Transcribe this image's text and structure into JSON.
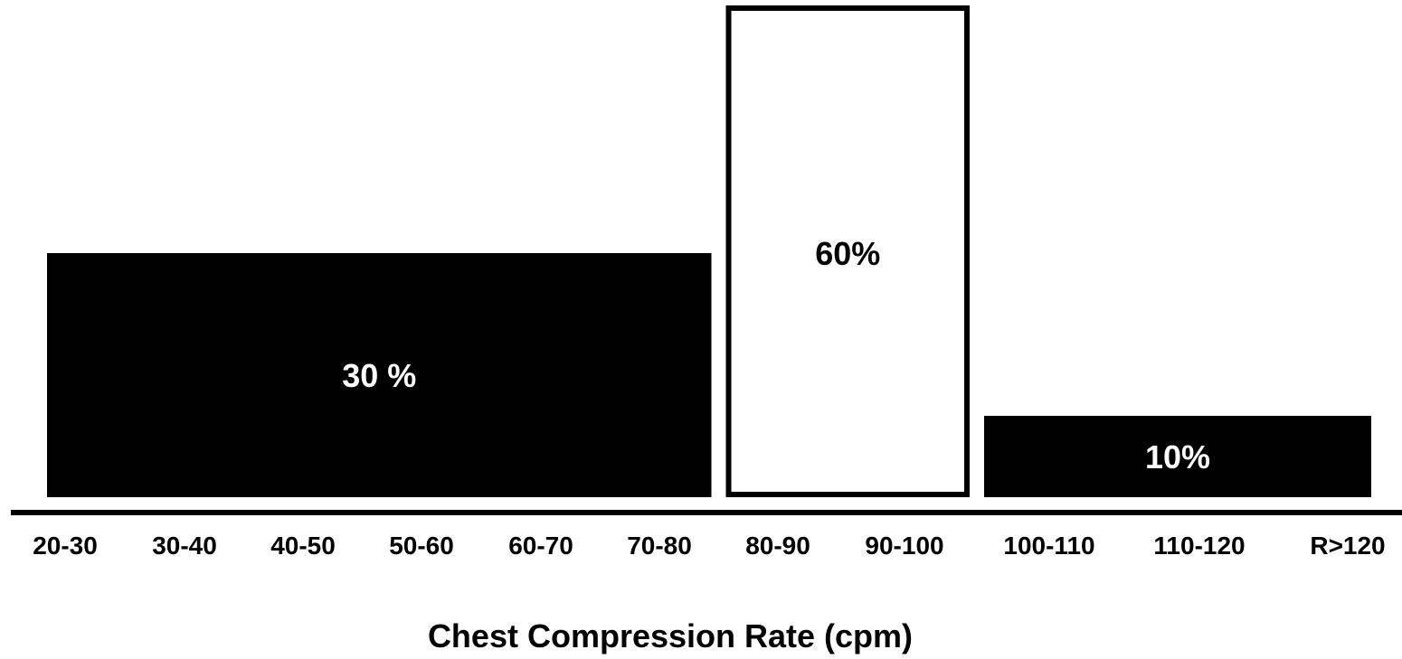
{
  "chart_data": {
    "type": "bar",
    "xlabel": "Chest Compression Rate (cpm)",
    "ylabel": "",
    "title": "",
    "categories": [
      "20-30",
      "30-40",
      "40-50",
      "50-60",
      "60-70",
      "70-80",
      "80-90",
      "90-100",
      "100-110",
      "110-120",
      "R>120"
    ],
    "unit": "%",
    "ylim": [
      0,
      65
    ],
    "grid": false,
    "bars": [
      {
        "range_start": "20-30",
        "range_end": "70-80",
        "value": 30,
        "label": "30 %",
        "fill": "#000000",
        "outline": "#000000",
        "label_color": "#ffffff"
      },
      {
        "range_start": "80-90",
        "range_end": "90-100",
        "value": 60,
        "label": "60%",
        "fill": "#ffffff",
        "outline": "#000000",
        "label_color": "#000000"
      },
      {
        "range_start": "100-110",
        "range_end": "R>120",
        "value": 10,
        "label": "10%",
        "fill": "#000000",
        "outline": "#000000",
        "label_color": "#ffffff"
      }
    ]
  }
}
